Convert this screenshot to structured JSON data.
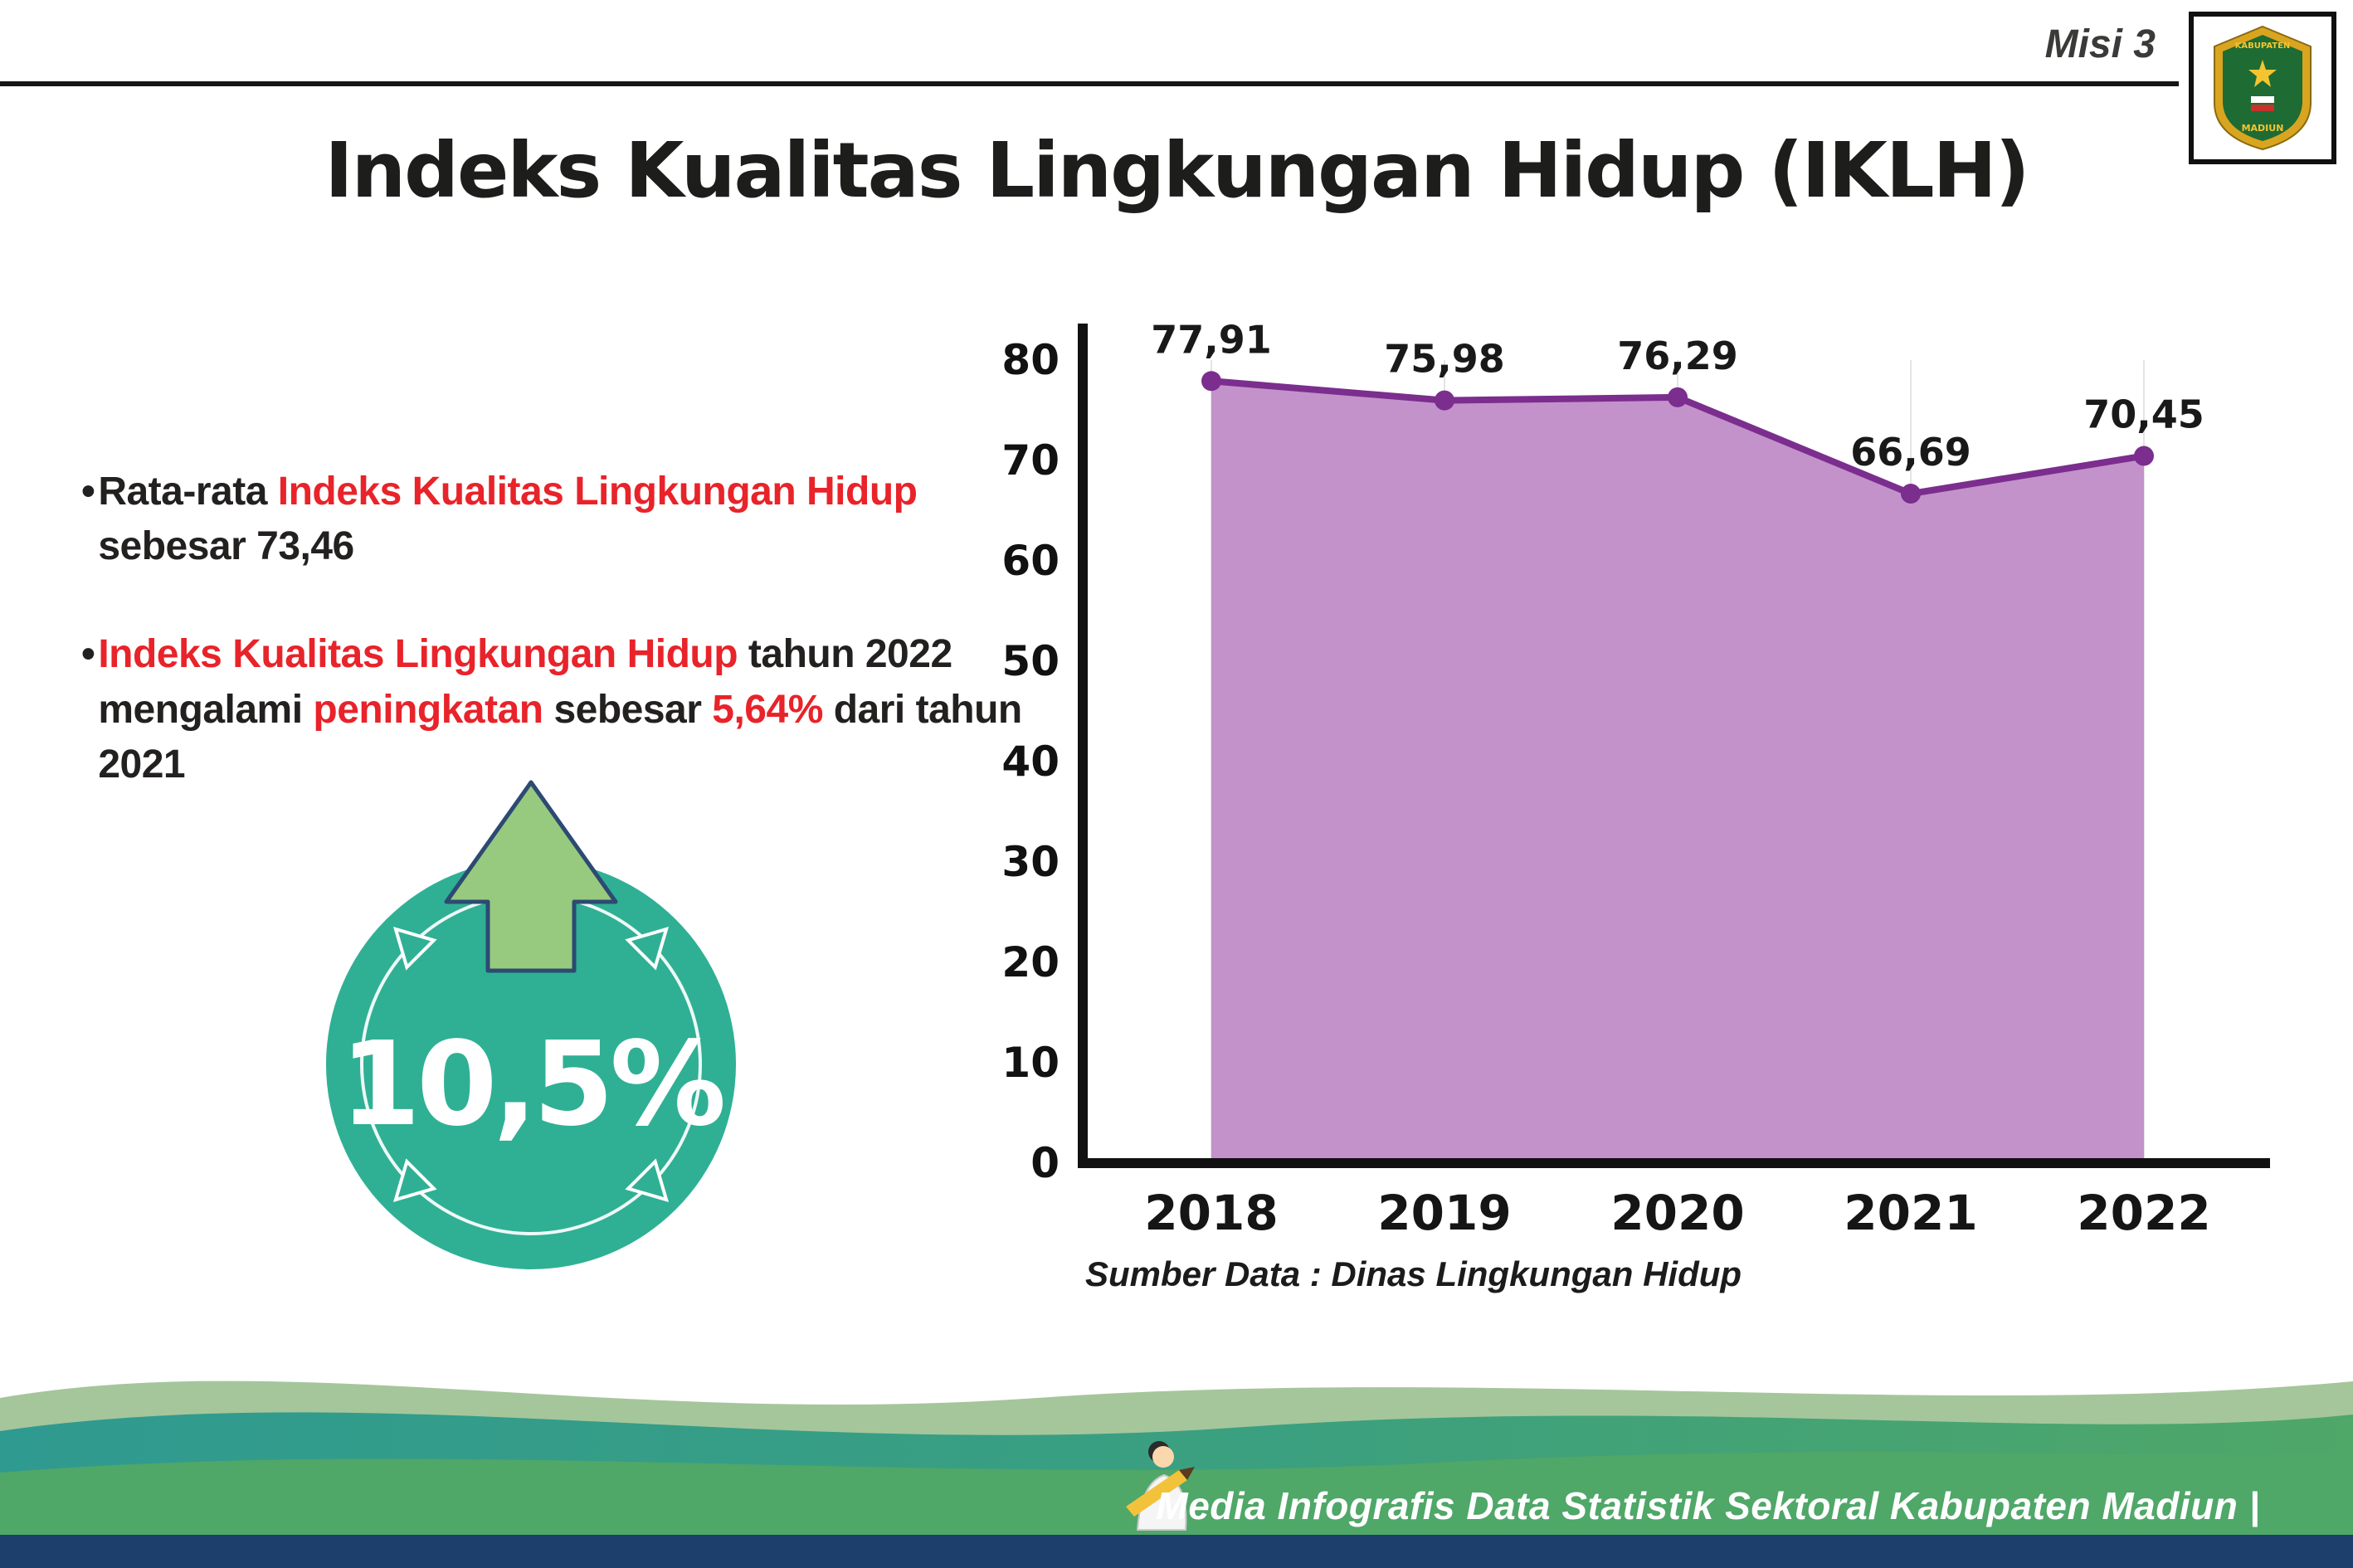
{
  "colors": {
    "accent_red": "#e8232a",
    "teal_badge": "#2fb094",
    "arrow_green": "#97ca7e",
    "arrow_outline": "#2c4a72",
    "area_fill": "#c392ca",
    "line_purple": "#7b2e8e",
    "footer_sage": "#a5c69b",
    "footer_teal": "#2f9a90",
    "footer_green": "#4fa768",
    "footer_navy": "#1d3f6b"
  },
  "header": {
    "misi_label": "Misi 3",
    "title": "Indeks Kualitas Lingkungan Hidup (IKLH)",
    "logo": {
      "name": "Kabupaten Madiun",
      "top_text": "KABUPATEN",
      "bottom_text": "MADIUN"
    }
  },
  "bullet_marker": "•",
  "bullets": [
    {
      "segments": [
        {
          "text": "Rata-rata ",
          "red": false
        },
        {
          "text": "Indeks Kualitas Lingkungan Hidup",
          "red": true
        },
        {
          "text": " sebesar 73,46",
          "red": false
        }
      ]
    },
    {
      "segments": [
        {
          "text": "Indeks Kualitas Lingkungan Hidup",
          "red": true
        },
        {
          "text": " tahun 2022 mengalami ",
          "red": false
        },
        {
          "text": "peningkatan",
          "red": true
        },
        {
          "text": " sebesar ",
          "red": false
        },
        {
          "text": "5,64%",
          "red": true
        },
        {
          "text": " dari tahun 2021",
          "red": false
        }
      ]
    }
  ],
  "badge": {
    "value": "10,5%"
  },
  "chart_data": {
    "type": "area",
    "categories": [
      "2018",
      "2019",
      "2020",
      "2021",
      "2022"
    ],
    "values": [
      77.91,
      75.98,
      76.29,
      66.69,
      70.45
    ],
    "point_labels": [
      "77,91",
      "75,98",
      "76,29",
      "66,69",
      "70,45"
    ],
    "title": "Indeks Kualitas Lingkungan Hidup (IKLH)",
    "xlabel": "",
    "ylabel": "",
    "ylim": [
      0,
      80
    ],
    "yticks": [
      0,
      10,
      20,
      30,
      40,
      50,
      60,
      70,
      80
    ],
    "grid": "vertical-light",
    "legend": "none",
    "source": "Sumber Data : Dinas Lingkungan Hidup"
  },
  "footer": {
    "text": "Media Infografis Data Statistik Sektoral Kabupaten Madiun |"
  }
}
